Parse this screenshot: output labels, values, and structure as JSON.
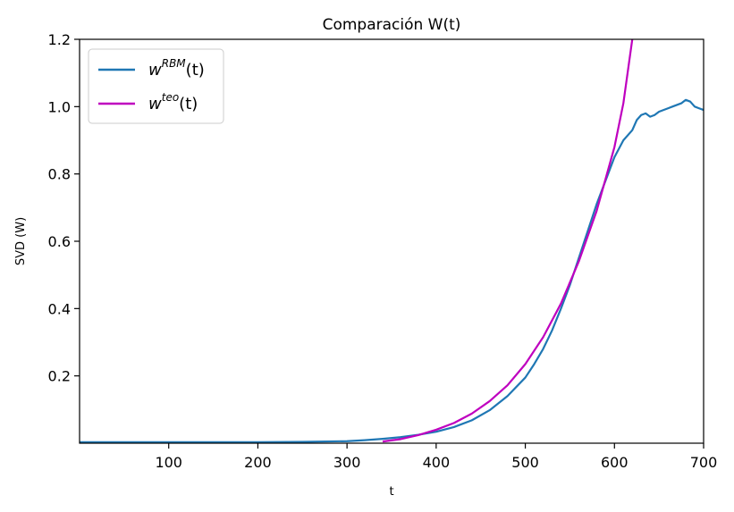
{
  "chart_data": {
    "type": "line",
    "title": "Comparación W(t)",
    "xlabel": "t",
    "ylabel": "SVD (W)",
    "xlim": [
      0,
      700
    ],
    "ylim": [
      0,
      1.2
    ],
    "x_ticks": [
      100,
      200,
      300,
      400,
      500,
      600,
      700
    ],
    "y_ticks": [
      0.2,
      0.4,
      0.6,
      0.8,
      1.0,
      1.2
    ],
    "x_tick_labels": [
      "100",
      "200",
      "300",
      "400",
      "500",
      "600",
      "700"
    ],
    "y_tick_labels": [
      "0.2",
      "0.4",
      "0.6",
      "0.8",
      "1.0",
      "1.2"
    ],
    "grid": false,
    "legend_position": "top-left",
    "series": [
      {
        "name": "w^{RBM}(t)",
        "legend_base": "w",
        "legend_sup": "RBM",
        "legend_tail": "(t)",
        "color": "#1f77b4",
        "x": [
          0,
          100,
          200,
          250,
          300,
          320,
          340,
          360,
          380,
          400,
          420,
          440,
          460,
          480,
          500,
          510,
          520,
          530,
          540,
          550,
          560,
          570,
          580,
          590,
          600,
          610,
          620,
          625,
          630,
          635,
          640,
          645,
          650,
          655,
          660,
          665,
          670,
          675,
          680,
          685,
          690,
          695,
          700
        ],
        "y": [
          0.003,
          0.003,
          0.003,
          0.004,
          0.006,
          0.009,
          0.013,
          0.018,
          0.025,
          0.034,
          0.048,
          0.068,
          0.098,
          0.14,
          0.195,
          0.235,
          0.28,
          0.335,
          0.4,
          0.47,
          0.55,
          0.63,
          0.71,
          0.78,
          0.85,
          0.9,
          0.93,
          0.96,
          0.975,
          0.98,
          0.97,
          0.975,
          0.985,
          0.99,
          0.995,
          1.0,
          1.005,
          1.01,
          1.02,
          1.015,
          1.0,
          0.995,
          0.99
        ]
      },
      {
        "name": "w^{teo}(t)",
        "legend_base": "w",
        "legend_sup": "teo",
        "legend_tail": "(t)",
        "color": "#bf00bf",
        "x": [
          340,
          360,
          380,
          400,
          420,
          440,
          460,
          480,
          500,
          520,
          540,
          560,
          580,
          600,
          610,
          620
        ],
        "y": [
          0.005,
          0.012,
          0.024,
          0.04,
          0.06,
          0.088,
          0.125,
          0.172,
          0.235,
          0.315,
          0.415,
          0.54,
          0.69,
          0.88,
          1.01,
          1.2
        ]
      }
    ]
  }
}
